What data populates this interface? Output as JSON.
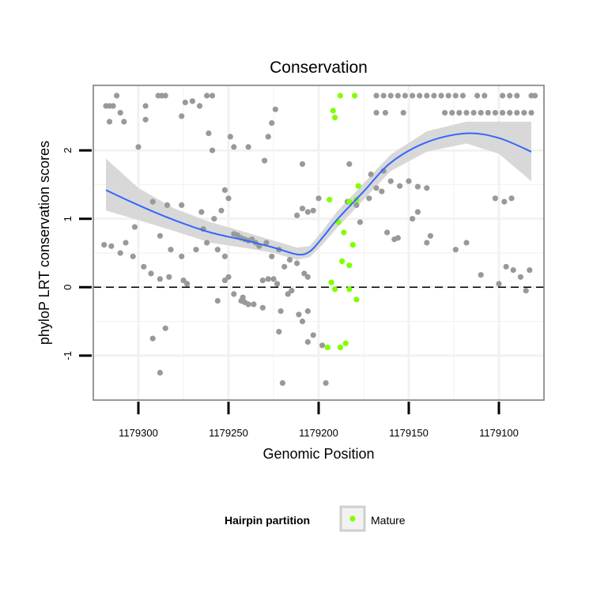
{
  "chart_data": {
    "type": "scatter",
    "title": "Conservation",
    "xlabel": "Genomic Position",
    "ylabel": "phyloP LRT conservation scores",
    "x_reversed": true,
    "xlim": [
      1179325,
      1179075
    ],
    "ylim": [
      -1.65,
      2.95
    ],
    "x_ticks": [
      1179300,
      1179250,
      1179200,
      1179150,
      1179100
    ],
    "x_tick_labels": [
      "1179300",
      "1179250",
      "1179200",
      "1179150",
      "1179100"
    ],
    "y_ticks": [
      -1,
      0,
      1,
      2
    ],
    "y_tick_labels": [
      "-1",
      "0",
      "1",
      "2"
    ],
    "grid": true,
    "reference_line": {
      "y": 0,
      "style": "dashed"
    },
    "legend": {
      "title": "Hairpin partition",
      "position": "bottom",
      "entries": [
        "Mature"
      ]
    },
    "colors": {
      "other": "#999999",
      "mature": "#7fff00",
      "smooth": "#3366ff",
      "band": "#d6d6d6",
      "panel_border": "#7f7f7f",
      "grid": "#f2f2f2"
    },
    "series": [
      {
        "name": "",
        "color": "#999999",
        "points": [
          [
            1179318,
            2.65
          ],
          [
            1179316,
            2.65
          ],
          [
            1179314,
            2.65
          ],
          [
            1179312,
            2.8
          ],
          [
            1179310,
            2.55
          ],
          [
            1179308,
            2.42
          ],
          [
            1179316,
            2.42
          ],
          [
            1179285,
            2.8
          ],
          [
            1179287,
            2.8
          ],
          [
            1179289,
            2.8
          ],
          [
            1179262,
            2.8
          ],
          [
            1179259,
            2.8
          ],
          [
            1179274,
            2.7
          ],
          [
            1179270,
            2.72
          ],
          [
            1179266,
            2.65
          ],
          [
            1179276,
            2.5
          ],
          [
            1179296,
            2.65
          ],
          [
            1179296,
            2.45
          ],
          [
            1179224,
            2.6
          ],
          [
            1179226,
            2.4
          ],
          [
            1179228,
            2.2
          ],
          [
            1179300,
            2.05
          ],
          [
            1179261,
            2.25
          ],
          [
            1179259,
            2.0
          ],
          [
            1179249,
            2.2
          ],
          [
            1179247,
            2.05
          ],
          [
            1179239,
            2.05
          ],
          [
            1179230,
            1.85
          ],
          [
            1179209,
            1.8
          ],
          [
            1179183,
            1.8
          ],
          [
            1179171,
            1.65
          ],
          [
            1179252,
            1.42
          ],
          [
            1179250,
            1.3
          ],
          [
            1179292,
            1.25
          ],
          [
            1179276,
            1.2
          ],
          [
            1179265,
            1.1
          ],
          [
            1179254,
            1.12
          ],
          [
            1179258,
            1.0
          ],
          [
            1179264,
            0.85
          ],
          [
            1179302,
            0.88
          ],
          [
            1179307,
            0.65
          ],
          [
            1179315,
            0.6
          ],
          [
            1179319,
            0.62
          ],
          [
            1179310,
            0.5
          ],
          [
            1179303,
            0.45
          ],
          [
            1179297,
            0.3
          ],
          [
            1179288,
            0.75
          ],
          [
            1179282,
            0.55
          ],
          [
            1179276,
            0.45
          ],
          [
            1179268,
            0.55
          ],
          [
            1179262,
            0.65
          ],
          [
            1179256,
            0.55
          ],
          [
            1179252,
            0.45
          ],
          [
            1179247,
            0.78
          ],
          [
            1179245,
            0.76
          ],
          [
            1179243,
            0.72
          ],
          [
            1179241,
            0.7
          ],
          [
            1179239,
            0.68
          ],
          [
            1179237,
            0.7
          ],
          [
            1179235,
            0.65
          ],
          [
            1179233,
            0.6
          ],
          [
            1179229,
            0.65
          ],
          [
            1179226,
            0.45
          ],
          [
            1179222,
            0.55
          ],
          [
            1179219,
            0.3
          ],
          [
            1179216,
            0.4
          ],
          [
            1179212,
            0.35
          ],
          [
            1179208,
            0.2
          ],
          [
            1179206,
            0.15
          ],
          [
            1179212,
            1.05
          ],
          [
            1179209,
            1.15
          ],
          [
            1179206,
            1.1
          ],
          [
            1179203,
            1.12
          ],
          [
            1179200,
            1.3
          ],
          [
            1179284,
            1.2
          ],
          [
            1179283,
            0.15
          ],
          [
            1179288,
            0.12
          ],
          [
            1179293,
            0.2
          ],
          [
            1179275,
            0.1
          ],
          [
            1179273,
            0.05
          ],
          [
            1179256,
            -0.2
          ],
          [
            1179252,
            0.1
          ],
          [
            1179250,
            0.15
          ],
          [
            1179247,
            -0.1
          ],
          [
            1179243,
            -0.2
          ],
          [
            1179241,
            -0.22
          ],
          [
            1179239,
            -0.25
          ],
          [
            1179236,
            -0.25
          ],
          [
            1179231,
            0.1
          ],
          [
            1179228,
            0.12
          ],
          [
            1179225,
            0.12
          ],
          [
            1179223,
            0.05
          ],
          [
            1179217,
            -0.1
          ],
          [
            1179215,
            -0.05
          ],
          [
            1179211,
            -0.4
          ],
          [
            1179209,
            -0.5
          ],
          [
            1179206,
            -0.35
          ],
          [
            1179203,
            -0.7
          ],
          [
            1179198,
            -0.85
          ],
          [
            1179196,
            -1.4
          ],
          [
            1179222,
            -0.65
          ],
          [
            1179220,
            -1.4
          ],
          [
            1179285,
            -0.6
          ],
          [
            1179292,
            -0.75
          ],
          [
            1179288,
            -1.25
          ],
          [
            1179242,
            -0.15
          ],
          [
            1179231,
            -0.3
          ],
          [
            1179221,
            -0.35
          ],
          [
            1179206,
            -0.8
          ],
          [
            1179184,
            1.25
          ],
          [
            1179179,
            1.2
          ],
          [
            1179172,
            1.3
          ],
          [
            1179168,
            1.45
          ],
          [
            1179165,
            1.4
          ],
          [
            1179160,
            1.55
          ],
          [
            1179155,
            1.48
          ],
          [
            1179150,
            1.55
          ],
          [
            1179145,
            1.47
          ],
          [
            1179140,
            1.45
          ],
          [
            1179177,
            0.95
          ],
          [
            1179162,
            0.8
          ],
          [
            1179158,
            0.7
          ],
          [
            1179156,
            0.72
          ],
          [
            1179148,
            1.0
          ],
          [
            1179145,
            1.1
          ],
          [
            1179138,
            0.75
          ],
          [
            1179140,
            0.65
          ],
          [
            1179124,
            0.55
          ],
          [
            1179118,
            0.65
          ],
          [
            1179110,
            0.18
          ],
          [
            1179102,
            1.3
          ],
          [
            1179097,
            1.25
          ],
          [
            1179093,
            1.3
          ],
          [
            1179100,
            0.05
          ],
          [
            1179096,
            0.3
          ],
          [
            1179092,
            0.25
          ],
          [
            1179088,
            0.15
          ],
          [
            1179083,
            0.25
          ],
          [
            1179085,
            -0.05
          ],
          [
            1179164,
            1.7
          ],
          [
            1179168,
            2.55
          ],
          [
            1179163,
            2.55
          ],
          [
            1179153,
            2.55
          ],
          [
            1179130,
            2.55
          ],
          [
            1179126,
            2.55
          ],
          [
            1179122,
            2.55
          ],
          [
            1179118,
            2.55
          ],
          [
            1179114,
            2.55
          ],
          [
            1179110,
            2.55
          ],
          [
            1179106,
            2.55
          ],
          [
            1179102,
            2.55
          ],
          [
            1179098,
            2.55
          ],
          [
            1179094,
            2.55
          ],
          [
            1179090,
            2.55
          ],
          [
            1179086,
            2.55
          ],
          [
            1179082,
            2.55
          ],
          [
            1179168,
            2.8
          ],
          [
            1179164,
            2.8
          ],
          [
            1179160,
            2.8
          ],
          [
            1179156,
            2.8
          ],
          [
            1179152,
            2.8
          ],
          [
            1179148,
            2.8
          ],
          [
            1179144,
            2.8
          ],
          [
            1179140,
            2.8
          ],
          [
            1179136,
            2.8
          ],
          [
            1179132,
            2.8
          ],
          [
            1179128,
            2.8
          ],
          [
            1179124,
            2.8
          ],
          [
            1179120,
            2.8
          ],
          [
            1179112,
            2.8
          ],
          [
            1179108,
            2.8
          ],
          [
            1179098,
            2.8
          ],
          [
            1179094,
            2.8
          ],
          [
            1179090,
            2.8
          ],
          [
            1179082,
            2.8
          ],
          [
            1179080,
            2.8
          ]
        ]
      },
      {
        "name": "Mature",
        "color": "#7fff00",
        "points": [
          [
            1179188,
            2.8
          ],
          [
            1179180,
            2.8
          ],
          [
            1179192,
            2.58
          ],
          [
            1179191,
            2.48
          ],
          [
            1179194,
            1.28
          ],
          [
            1179178,
            1.48
          ],
          [
            1179179,
            1.28
          ],
          [
            1179183,
            1.25
          ],
          [
            1179189,
            0.95
          ],
          [
            1179186,
            0.8
          ],
          [
            1179181,
            0.62
          ],
          [
            1179187,
            0.38
          ],
          [
            1179183,
            0.32
          ],
          [
            1179193,
            0.07
          ],
          [
            1179191,
            -0.03
          ],
          [
            1179183,
            -0.03
          ],
          [
            1179179,
            -0.18
          ],
          [
            1179195,
            -0.88
          ],
          [
            1179188,
            -0.88
          ],
          [
            1179185,
            -0.82
          ]
        ]
      }
    ],
    "smooth": {
      "x": [
        1179318,
        1179300,
        1179280,
        1179260,
        1179240,
        1179225,
        1179212,
        1179205,
        1179198,
        1179190,
        1179175,
        1179160,
        1179140,
        1179118,
        1179100,
        1179082
      ],
      "y": [
        1.42,
        1.2,
        0.98,
        0.8,
        0.68,
        0.58,
        0.48,
        0.52,
        0.72,
        0.98,
        1.4,
        1.82,
        2.12,
        2.25,
        2.18,
        1.98
      ],
      "lower": [
        1.12,
        0.98,
        0.82,
        0.65,
        0.57,
        0.5,
        0.4,
        0.44,
        0.62,
        0.86,
        1.28,
        1.7,
        1.98,
        2.1,
        1.95,
        1.55
      ],
      "upper": [
        1.88,
        1.45,
        1.15,
        0.95,
        0.8,
        0.68,
        0.58,
        0.6,
        0.82,
        1.1,
        1.52,
        1.94,
        2.28,
        2.42,
        2.42,
        2.42
      ]
    }
  }
}
